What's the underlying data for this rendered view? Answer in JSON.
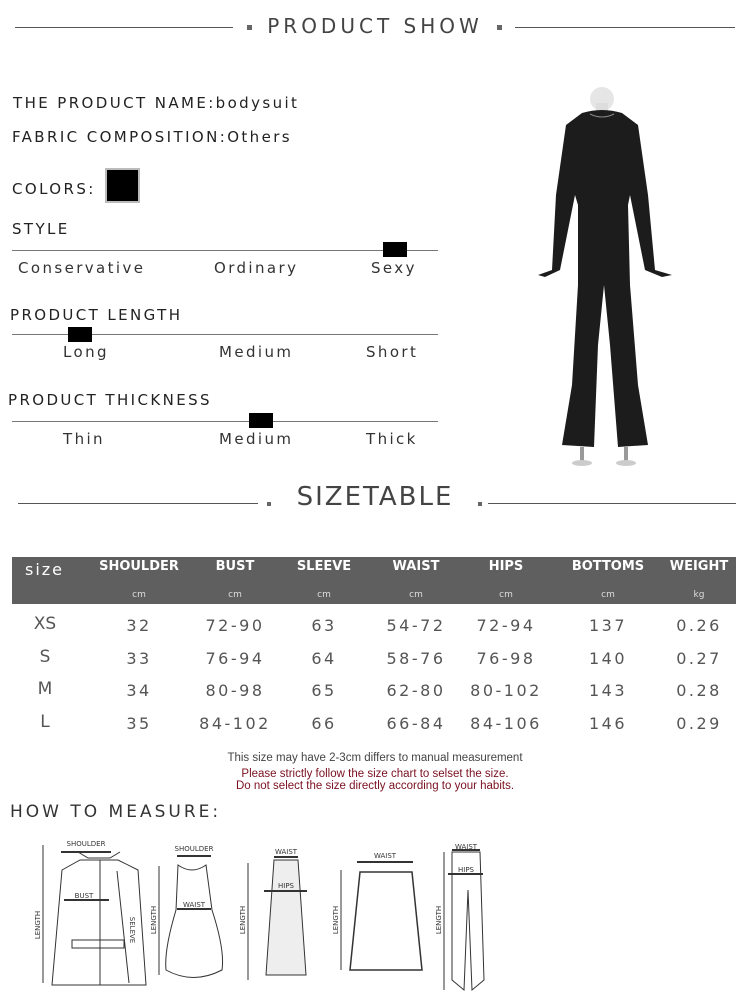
{
  "header": {
    "title": "PRODUCT SHOW"
  },
  "product": {
    "name_label": "THE PRODUCT NAME:",
    "name": "bodysuit",
    "fabric_label": "FABRIC COMPOSITION:",
    "fabric": "Others",
    "colors_label": "COLORS:",
    "color_swatch": "#000000"
  },
  "scales": [
    {
      "title": "STYLE",
      "options": [
        "Conservative",
        "Ordinary",
        "Sexy"
      ],
      "selected": "Sexy"
    },
    {
      "title": "PRODUCT LENGTH",
      "options": [
        "Long",
        "Medium",
        "Short"
      ],
      "selected": "Long"
    },
    {
      "title": "PRODUCT THICKNESS",
      "options": [
        "Thin",
        "Medium",
        "Thick"
      ],
      "selected": "Medium"
    }
  ],
  "sizetable": {
    "title": "SIZETABLE",
    "size_header": "size",
    "columns": [
      {
        "name": "SHOULDER",
        "unit": "cm"
      },
      {
        "name": "BUST",
        "unit": "cm"
      },
      {
        "name": "SLEEVE",
        "unit": "cm"
      },
      {
        "name": "WAIST",
        "unit": "cm"
      },
      {
        "name": "HIPS",
        "unit": "cm"
      },
      {
        "name": "BOTTOMS",
        "unit": "cm"
      },
      {
        "name": "WEIGHT",
        "unit": "kg"
      }
    ],
    "rows": [
      {
        "size": "XS",
        "values": [
          "32",
          "72-90",
          "63",
          "54-72",
          "72-94",
          "137",
          "0.26"
        ]
      },
      {
        "size": "S",
        "values": [
          "33",
          "76-94",
          "64",
          "58-76",
          "76-98",
          "140",
          "0.27"
        ]
      },
      {
        "size": "M",
        "values": [
          "34",
          "80-98",
          "65",
          "62-80",
          "80-102",
          "143",
          "0.28"
        ]
      },
      {
        "size": "L",
        "values": [
          "35",
          "84-102",
          "66",
          "66-84",
          "84-106",
          "146",
          "0.29"
        ]
      }
    ],
    "note": "This size may have 2-3cm differs to manual measurement",
    "warning_1": "Please strictly follow the size chart to selset the size.",
    "warning_2": "Do not select the size directly according to your habits.",
    "warning_color": "#7a1020"
  },
  "measure": {
    "title": "HOW TO MEASURE:",
    "labels": {
      "shoulder": "SHOULDER",
      "bust": "BUST",
      "length": "LENGTH",
      "sleeve": "SELEVE",
      "waist": "WAIST",
      "hips": "HIPS"
    }
  }
}
